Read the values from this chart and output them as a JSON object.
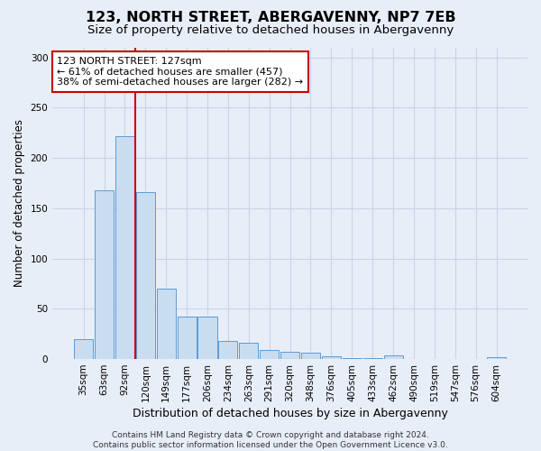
{
  "title": "123, NORTH STREET, ABERGAVENNY, NP7 7EB",
  "subtitle": "Size of property relative to detached houses in Abergavenny",
  "xlabel": "Distribution of detached houses by size in Abergavenny",
  "ylabel": "Number of detached properties",
  "categories": [
    "35sqm",
    "63sqm",
    "92sqm",
    "120sqm",
    "149sqm",
    "177sqm",
    "206sqm",
    "234sqm",
    "263sqm",
    "291sqm",
    "320sqm",
    "348sqm",
    "376sqm",
    "405sqm",
    "433sqm",
    "462sqm",
    "490sqm",
    "519sqm",
    "547sqm",
    "576sqm",
    "604sqm"
  ],
  "bar_values": [
    20,
    168,
    222,
    166,
    70,
    42,
    42,
    18,
    16,
    9,
    7,
    6,
    3,
    1,
    1,
    4,
    0,
    0,
    0,
    0,
    2
  ],
  "bar_color": "#c9ddf0",
  "bar_edge_color": "#5b9bd5",
  "vline_x_index": 2.5,
  "vline_color": "#cc0000",
  "annotation_text": "123 NORTH STREET: 127sqm\n← 61% of detached houses are smaller (457)\n38% of semi-detached houses are larger (282) →",
  "annotation_box_color": "#ffffff",
  "annotation_box_edge": "#cc0000",
  "ylim": [
    0,
    310
  ],
  "yticks": [
    0,
    50,
    100,
    150,
    200,
    250,
    300
  ],
  "grid_color": "#c8d4e8",
  "bg_color": "#e8eef8",
  "plot_bg_color": "#e8eef8",
  "footer": "Contains HM Land Registry data © Crown copyright and database right 2024.\nContains public sector information licensed under the Open Government Licence v3.0.",
  "title_fontsize": 11.5,
  "subtitle_fontsize": 9.5,
  "xlabel_fontsize": 9,
  "ylabel_fontsize": 8.5,
  "tick_fontsize": 7.5,
  "ann_fontsize": 8,
  "footer_fontsize": 6.5
}
